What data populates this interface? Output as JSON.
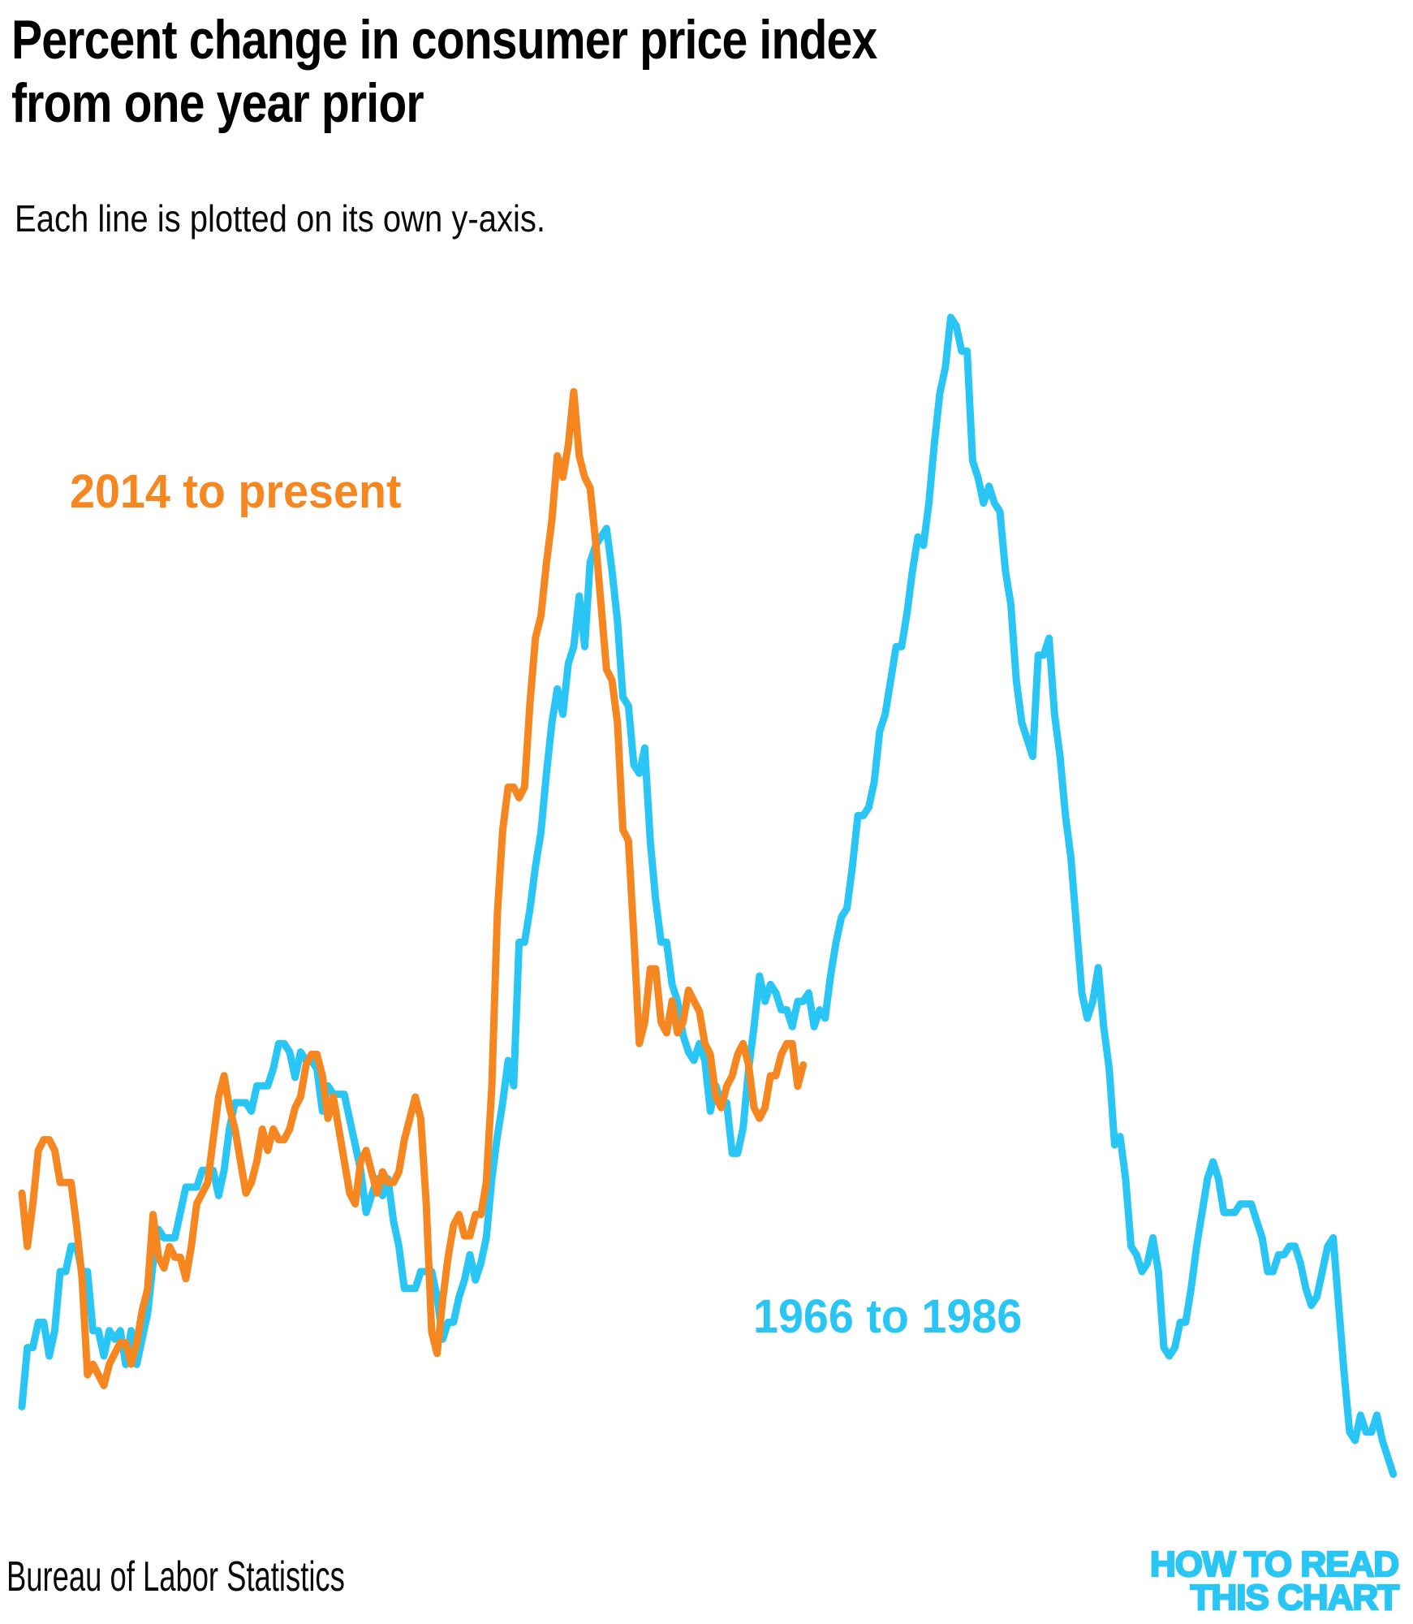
{
  "title_lines": [
    "Percent change in consumer price index",
    "from one year prior"
  ],
  "subtitle": "Each line is plotted on its own y-axis.",
  "source": "Bureau of Labor Statistics",
  "logo": {
    "line1": "HOW TO READ",
    "line2": "THIS CHART",
    "color": "#29C6F5"
  },
  "colors": {
    "past": "#29C6F5",
    "present": "#F6861F",
    "text": "#000000"
  },
  "chart_data": {
    "type": "line",
    "title": "Percent change in consumer price index from one year prior",
    "subtitle": "Each line is plotted on its own y-axis.",
    "source": "Bureau of Labor Statistics",
    "unit": "percent",
    "x_unit": "month",
    "axes_note": "No visible axes or gridlines; each series is drawn on its own independent y-scale",
    "legend_position": "inline annotations near each line",
    "grid": false,
    "series": [
      {
        "id": "past",
        "label": "1966 to 1986",
        "color": "#29C6F5",
        "start": "1966-01",
        "end": "1986-12",
        "approx_value_range": [
          1.1,
          14.8
        ],
        "values": [
          1.9,
          2.6,
          2.6,
          2.9,
          2.9,
          2.5,
          2.8,
          3.5,
          3.5,
          3.8,
          3.8,
          3.5,
          3.5,
          2.8,
          2.8,
          2.5,
          2.8,
          2.7,
          2.8,
          2.4,
          2.8,
          2.4,
          2.7,
          3.0,
          3.6,
          4.0,
          3.9,
          3.9,
          3.9,
          4.2,
          4.5,
          4.5,
          4.5,
          4.7,
          4.7,
          4.7,
          4.4,
          4.7,
          5.2,
          5.5,
          5.5,
          5.5,
          5.4,
          5.7,
          5.7,
          5.7,
          5.9,
          6.2,
          6.2,
          6.1,
          5.8,
          6.1,
          6.0,
          6.0,
          5.9,
          5.4,
          5.7,
          5.6,
          5.6,
          5.6,
          5.3,
          5.0,
          4.7,
          4.2,
          4.4,
          4.6,
          4.4,
          4.6,
          4.1,
          3.8,
          3.3,
          3.3,
          3.3,
          3.5,
          3.5,
          3.5,
          3.2,
          2.7,
          2.9,
          2.9,
          3.2,
          3.4,
          3.7,
          3.4,
          3.6,
          3.9,
          4.6,
          5.1,
          5.5,
          6.0,
          5.7,
          7.4,
          7.4,
          7.8,
          8.3,
          8.7,
          9.4,
          10.0,
          10.4,
          10.1,
          10.7,
          10.9,
          11.5,
          10.9,
          11.9,
          12.1,
          12.2,
          12.3,
          11.8,
          11.2,
          10.3,
          10.2,
          9.5,
          9.4,
          9.7,
          8.6,
          7.9,
          7.4,
          7.4,
          6.9,
          6.7,
          6.3,
          6.1,
          6.0,
          6.2,
          6.0,
          5.4,
          5.7,
          5.5,
          5.5,
          4.9,
          4.9,
          5.2,
          5.9,
          6.4,
          7.0,
          6.7,
          6.9,
          6.8,
          6.6,
          6.6,
          6.4,
          6.7,
          6.7,
          6.8,
          6.4,
          6.6,
          6.5,
          7.0,
          7.4,
          7.7,
          7.8,
          8.3,
          8.9,
          8.9,
          9.0,
          9.3,
          9.9,
          10.1,
          10.5,
          10.9,
          10.9,
          11.3,
          11.8,
          12.2,
          12.1,
          12.6,
          13.3,
          13.9,
          14.2,
          14.8,
          14.7,
          14.4,
          14.4,
          13.1,
          12.9,
          12.6,
          12.8,
          12.6,
          12.5,
          11.8,
          11.4,
          10.5,
          10.0,
          9.8,
          9.6,
          10.8,
          10.8,
          11.0,
          10.1,
          9.6,
          8.9,
          8.4,
          7.6,
          6.8,
          6.5,
          6.7,
          7.1,
          6.4,
          5.9,
          5.0,
          5.1,
          4.6,
          3.8,
          3.7,
          3.5,
          3.6,
          3.9,
          3.5,
          2.6,
          2.5,
          2.6,
          2.9,
          2.9,
          3.3,
          3.8,
          4.2,
          4.6,
          4.8,
          4.6,
          4.2,
          4.2,
          4.2,
          4.3,
          4.3,
          4.3,
          4.1,
          3.9,
          3.5,
          3.5,
          3.7,
          3.7,
          3.8,
          3.8,
          3.6,
          3.3,
          3.1,
          3.2,
          3.5,
          3.8,
          3.9,
          3.1,
          2.3,
          1.6,
          1.5,
          1.8,
          1.6,
          1.6,
          1.8,
          1.5,
          1.3,
          1.1
        ]
      },
      {
        "id": "present",
        "label": "2014 to present",
        "color": "#F6861F",
        "start": "2014-01",
        "end": "2025-12",
        "approx_value_range": [
          -0.2,
          9.1
        ],
        "values": [
          1.6,
          1.1,
          1.5,
          2.0,
          2.1,
          2.1,
          2.0,
          1.7,
          1.7,
          1.7,
          1.3,
          0.8,
          -0.1,
          0.0,
          -0.1,
          -0.2,
          0.0,
          0.1,
          0.2,
          0.2,
          0.0,
          0.2,
          0.5,
          0.7,
          1.4,
          1.0,
          0.9,
          1.1,
          1.0,
          1.0,
          0.8,
          1.1,
          1.5,
          1.6,
          1.7,
          2.1,
          2.5,
          2.7,
          2.4,
          2.2,
          1.9,
          1.6,
          1.7,
          1.9,
          2.2,
          2.0,
          2.2,
          2.1,
          2.1,
          2.2,
          2.4,
          2.5,
          2.8,
          2.9,
          2.9,
          2.7,
          2.3,
          2.5,
          2.2,
          1.9,
          1.6,
          1.5,
          1.9,
          2.0,
          1.8,
          1.6,
          1.8,
          1.7,
          1.7,
          1.8,
          2.1,
          2.3,
          2.5,
          2.3,
          1.5,
          0.3,
          0.1,
          0.6,
          1.0,
          1.3,
          1.4,
          1.2,
          1.2,
          1.4,
          1.4,
          1.7,
          2.6,
          4.2,
          5.0,
          5.4,
          5.4,
          5.3,
          5.4,
          6.2,
          6.8,
          7.0,
          7.5,
          7.9,
          8.5,
          8.3,
          8.6,
          9.1,
          8.5,
          8.3,
          8.2,
          7.7,
          7.1,
          6.5,
          6.4,
          6.0,
          5.0,
          4.9,
          4.0,
          3.0,
          3.2,
          3.7,
          3.7,
          3.2,
          3.1,
          3.4,
          3.1,
          3.2,
          3.5,
          3.4,
          3.3,
          3.0,
          2.9,
          2.5,
          2.4,
          2.6,
          2.7,
          2.9,
          3.0,
          2.8,
          2.4,
          2.3,
          2.4,
          2.7,
          2.7,
          2.9,
          3.0,
          3.0,
          2.6,
          2.8
        ]
      }
    ]
  }
}
